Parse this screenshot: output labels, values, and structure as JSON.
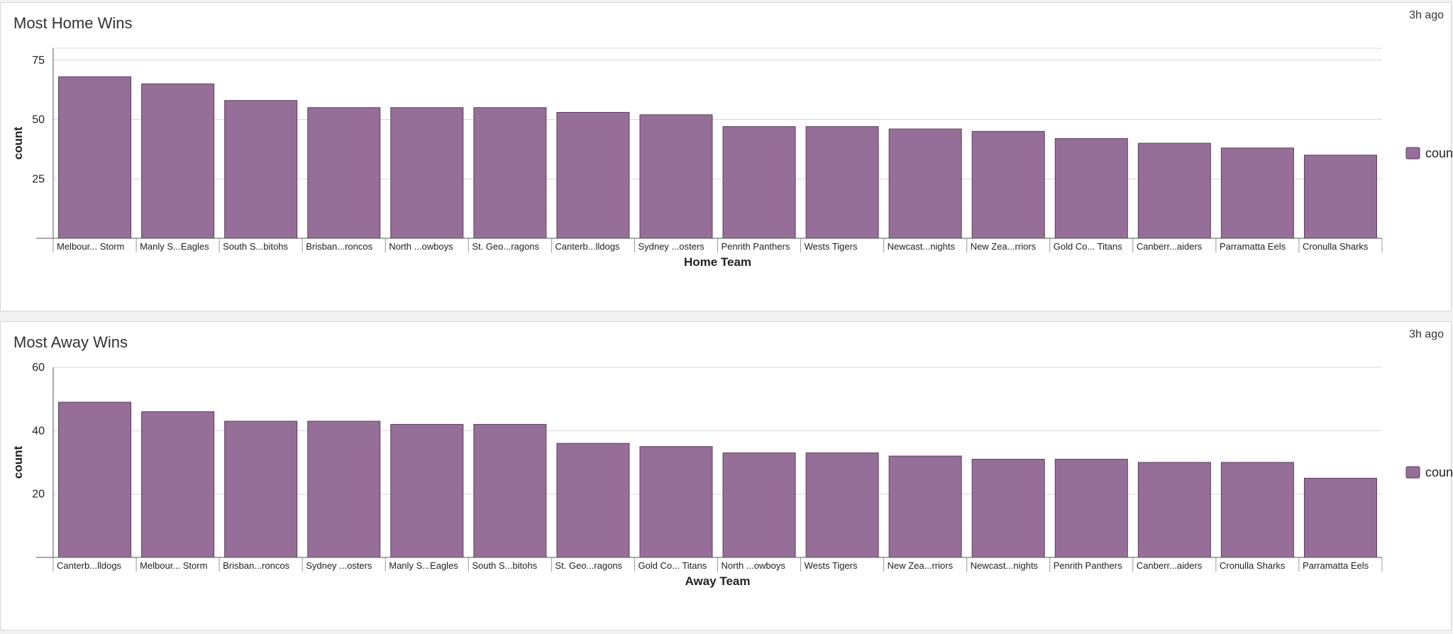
{
  "panels": [
    {
      "title": "Most Home Wins",
      "time": "3h ago",
      "legend": "count",
      "chart_data": {
        "type": "bar",
        "title": "Most Home Wins",
        "xlabel": "Home Team",
        "ylabel": "count",
        "ylim": [
          0,
          80
        ],
        "yticks": [
          25,
          50,
          75
        ],
        "grid": true,
        "legend_position": "right",
        "color": "#966f98",
        "categories": [
          "Melbour... Storm",
          "Manly S...Eagles",
          "South S...bitohs",
          "Brisban...roncos",
          "North ...owboys",
          "St. Geo...ragons",
          "Canterb...lldogs",
          "Sydney ...osters",
          "Penrith Panthers",
          "Wests Tigers",
          "Newcast...nights",
          "New Zea...rriors",
          "Gold Co... Titans",
          "Canberr...aiders",
          "Parramatta Eels",
          "Cronulla Sharks"
        ],
        "series": [
          {
            "name": "count",
            "values": [
              68,
              65,
              58,
              55,
              55,
              55,
              53,
              52,
              47,
              47,
              46,
              45,
              42,
              40,
              38,
              35
            ]
          }
        ]
      }
    },
    {
      "title": "Most Away Wins",
      "time": "3h ago",
      "legend": "count",
      "chart_data": {
        "type": "bar",
        "title": "Most Away Wins",
        "xlabel": "Away Team",
        "ylabel": "count",
        "ylim": [
          0,
          60
        ],
        "yticks": [
          20,
          40,
          60
        ],
        "grid": true,
        "legend_position": "right",
        "color": "#966f98",
        "categories": [
          "Canterb...lldogs",
          "Melbour... Storm",
          "Brisban...roncos",
          "Sydney ...osters",
          "Manly S...Eagles",
          "South S...bitohs",
          "St. Geo...ragons",
          "Gold Co... Titans",
          "North ...owboys",
          "Wests Tigers",
          "New Zea...rriors",
          "Newcast...nights",
          "Penrith Panthers",
          "Canberr...aiders",
          "Cronulla Sharks",
          "Parramatta Eels"
        ],
        "series": [
          {
            "name": "count",
            "values": [
              49,
              46,
              43,
              43,
              42,
              42,
              36,
              35,
              33,
              33,
              32,
              31,
              31,
              30,
              30,
              25
            ]
          }
        ]
      }
    }
  ]
}
